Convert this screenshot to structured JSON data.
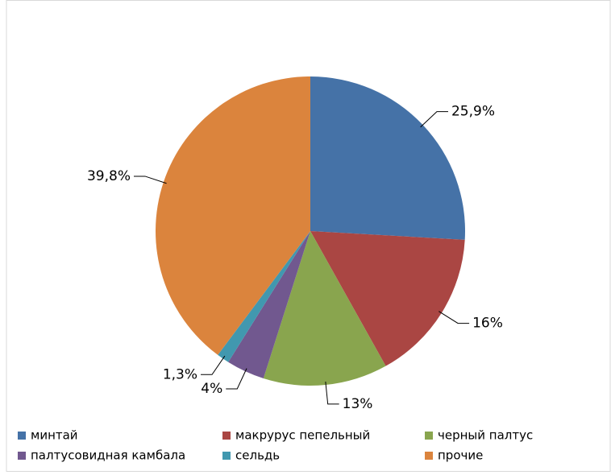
{
  "chart_data": {
    "type": "pie",
    "categories": [
      "минтай",
      "макрурус пепельный",
      "черный палтус",
      "палтусовидная камбала",
      "сельдь",
      "прочие"
    ],
    "values": [
      25.9,
      16,
      13,
      4,
      1.3,
      39.8
    ],
    "value_labels": [
      "25,9%",
      "16%",
      "13%",
      "4%",
      "1,3%",
      "39,8%"
    ],
    "colors": [
      "#4572a7",
      "#aa4643",
      "#89a54e",
      "#71588f",
      "#4198af",
      "#db843d"
    ],
    "legend": "bottom"
  }
}
